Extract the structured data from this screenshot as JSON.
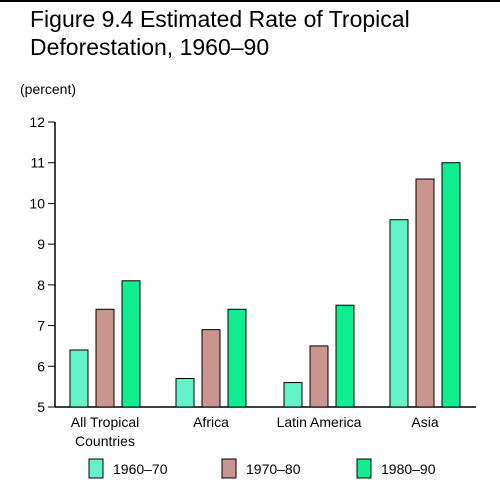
{
  "chart_data": {
    "type": "bar",
    "title_line1": "Figure 9.4 Estimated Rate of Tropical",
    "title_line2": "Deforestation, 1960–90",
    "ylabel": "(percent)",
    "xlabel": "",
    "ylim": [
      5,
      12
    ],
    "yticks": [
      "5",
      "6",
      "7",
      "8",
      "9",
      "10",
      "11",
      "12"
    ],
    "categories": [
      [
        "All Tropical",
        "Countries"
      ],
      [
        "Africa"
      ],
      [
        "Latin America"
      ],
      [
        "Asia"
      ]
    ],
    "series": [
      {
        "name": "1960–70",
        "color": "#66f2c8",
        "values": [
          6.4,
          5.7,
          5.6,
          9.6
        ]
      },
      {
        "name": "1970–80",
        "color": "#c9958e",
        "values": [
          7.4,
          6.9,
          6.5,
          10.6
        ]
      },
      {
        "name": "1980–90",
        "color": "#10ec90",
        "values": [
          8.1,
          7.4,
          7.5,
          11.0
        ]
      }
    ],
    "grid": false,
    "legend_position": "bottom"
  }
}
